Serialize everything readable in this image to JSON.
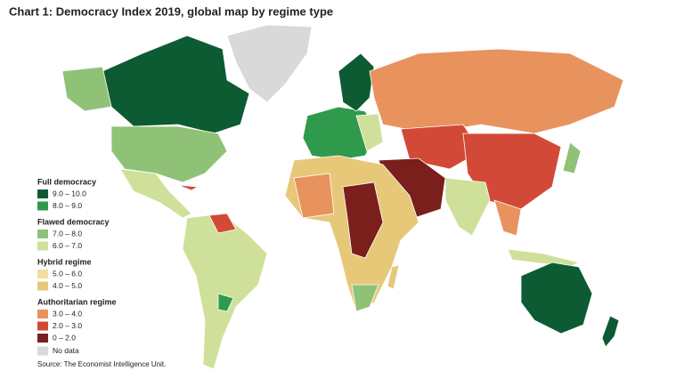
{
  "title": "Chart 1: Democracy Index 2019, global map by regime type",
  "legend": {
    "groups": [
      {
        "name": "Full democracy",
        "items": [
          {
            "label": "9.0 – 10.0",
            "color": "#0d5b32"
          },
          {
            "label": "8.0 – 9.0",
            "color": "#2f9a4c"
          }
        ]
      },
      {
        "name": "Flawed democracy",
        "items": [
          {
            "label": "7.0 – 8.0",
            "color": "#8fc276"
          },
          {
            "label": "6.0 – 7.0",
            "color": "#cfe09a"
          }
        ]
      },
      {
        "name": "Hybrid regime",
        "items": [
          {
            "label": "5.0 – 6.0",
            "color": "#f1dfa0"
          },
          {
            "label": "4.0 – 5.0",
            "color": "#e6c878"
          }
        ]
      },
      {
        "name": "Authoritarian regime",
        "items": [
          {
            "label": "3.0 – 4.0",
            "color": "#e8925e"
          },
          {
            "label": "2.0 – 3.0",
            "color": "#d24a37"
          },
          {
            "label": "0 – 2.0",
            "color": "#7a1f1c"
          }
        ]
      }
    ],
    "no_data": {
      "label": "No data",
      "color": "#d9d9d9"
    }
  },
  "source": "Source: The Economist Intelligence Unit."
}
